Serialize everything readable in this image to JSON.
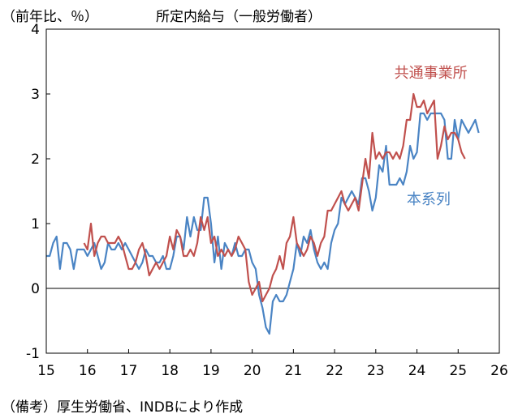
{
  "header": {
    "unit_label": "（前年比、％）",
    "title": "所定内給与（一般労働者）"
  },
  "source_note": "（備考）厚生労働省、INDBにより作成",
  "chart_data": {
    "type": "line",
    "title": "所定内給与（一般労働者）",
    "ylabel": "（前年比、％）",
    "xlabel": "",
    "ylim": [
      -1,
      4
    ],
    "xlim": [
      15,
      26
    ],
    "y_ticks": [
      "-1",
      "0",
      "1",
      "2",
      "3",
      "4"
    ],
    "x_ticks": [
      "15",
      "16",
      "17",
      "18",
      "19",
      "20",
      "21",
      "22",
      "23",
      "24",
      "25",
      "26"
    ],
    "x_tick_values": [
      15,
      16,
      17,
      18,
      19,
      20,
      21,
      22,
      23,
      24,
      25,
      26
    ],
    "y_tick_values": [
      -1,
      0,
      1,
      2,
      3,
      4
    ],
    "series": [
      {
        "name": "本系列",
        "color": "#4a84c4",
        "start_year": 15.0,
        "step": 0.0833333,
        "values": [
          0.5,
          0.5,
          0.7,
          0.8,
          0.3,
          0.7,
          0.7,
          0.6,
          0.3,
          0.6,
          0.6,
          0.6,
          0.5,
          0.6,
          0.7,
          0.5,
          0.3,
          0.4,
          0.7,
          0.6,
          0.6,
          0.7,
          0.6,
          0.7,
          0.6,
          0.5,
          0.4,
          0.3,
          0.4,
          0.6,
          0.5,
          0.5,
          0.4,
          0.4,
          0.5,
          0.3,
          0.3,
          0.5,
          0.8,
          0.8,
          0.6,
          1.1,
          0.8,
          1.1,
          0.9,
          0.9,
          1.4,
          1.4,
          1.0,
          0.4,
          0.8,
          0.3,
          0.7,
          0.6,
          0.5,
          0.7,
          0.5,
          0.5,
          0.6,
          0.6,
          0.4,
          0.3,
          -0.1,
          -0.3,
          -0.6,
          -0.7,
          -0.2,
          -0.1,
          -0.2,
          -0.2,
          -0.1,
          0.1,
          0.3,
          0.7,
          0.5,
          0.8,
          0.7,
          0.9,
          0.6,
          0.4,
          0.3,
          0.4,
          0.3,
          0.7,
          0.9,
          1.0,
          1.4,
          1.3,
          1.4,
          1.5,
          1.4,
          1.3,
          1.7,
          1.7,
          1.5,
          1.2,
          1.4,
          1.9,
          1.8,
          2.2,
          1.6,
          1.6,
          1.6,
          1.7,
          1.6,
          1.8,
          2.2,
          2.0,
          2.1,
          2.7,
          2.7,
          2.6,
          2.7,
          2.7,
          2.7,
          2.7,
          2.6,
          2.0,
          2.0,
          2.6,
          2.3,
          2.6,
          2.5,
          2.4,
          2.5,
          2.6,
          2.4
        ]
      },
      {
        "name": "共通事業所",
        "color": "#c0504d",
        "start_year": 15.9167,
        "step": 0.0833333,
        "values": [
          0.7,
          0.6,
          1.0,
          0.5,
          0.7,
          0.8,
          0.8,
          0.7,
          0.7,
          0.7,
          0.8,
          0.7,
          0.5,
          0.3,
          0.3,
          0.4,
          0.6,
          0.7,
          0.5,
          0.2,
          0.3,
          0.4,
          0.3,
          0.4,
          0.5,
          0.8,
          0.6,
          0.9,
          0.8,
          0.5,
          0.5,
          0.6,
          0.5,
          0.7,
          1.1,
          0.9,
          1.1,
          0.7,
          0.8,
          0.5,
          0.6,
          0.5,
          0.6,
          0.5,
          0.6,
          0.8,
          0.7,
          0.6,
          0.1,
          -0.1,
          0.0,
          0.1,
          -0.2,
          -0.1,
          0.0,
          0.2,
          0.3,
          0.5,
          0.3,
          0.7,
          0.8,
          1.1,
          0.7,
          0.6,
          0.5,
          0.6,
          0.8,
          0.7,
          0.5,
          0.7,
          0.8,
          1.2,
          1.2,
          1.3,
          1.4,
          1.5,
          1.3,
          1.2,
          1.3,
          1.4,
          1.2,
          1.6,
          2.0,
          1.7,
          2.4,
          2.0,
          2.1,
          2.0,
          2.1,
          2.1,
          2.0,
          2.1,
          2.0,
          2.2,
          2.6,
          2.6,
          3.0,
          2.8,
          2.8,
          2.9,
          2.7,
          2.8,
          2.9,
          2.0,
          2.2,
          2.5,
          2.3,
          2.4,
          2.4,
          2.3,
          2.1,
          2.0
        ]
      }
    ],
    "annotations": [
      {
        "text": "共通事業所",
        "series": "共通事業所"
      },
      {
        "text": "本系列",
        "series": "本系列"
      }
    ]
  }
}
